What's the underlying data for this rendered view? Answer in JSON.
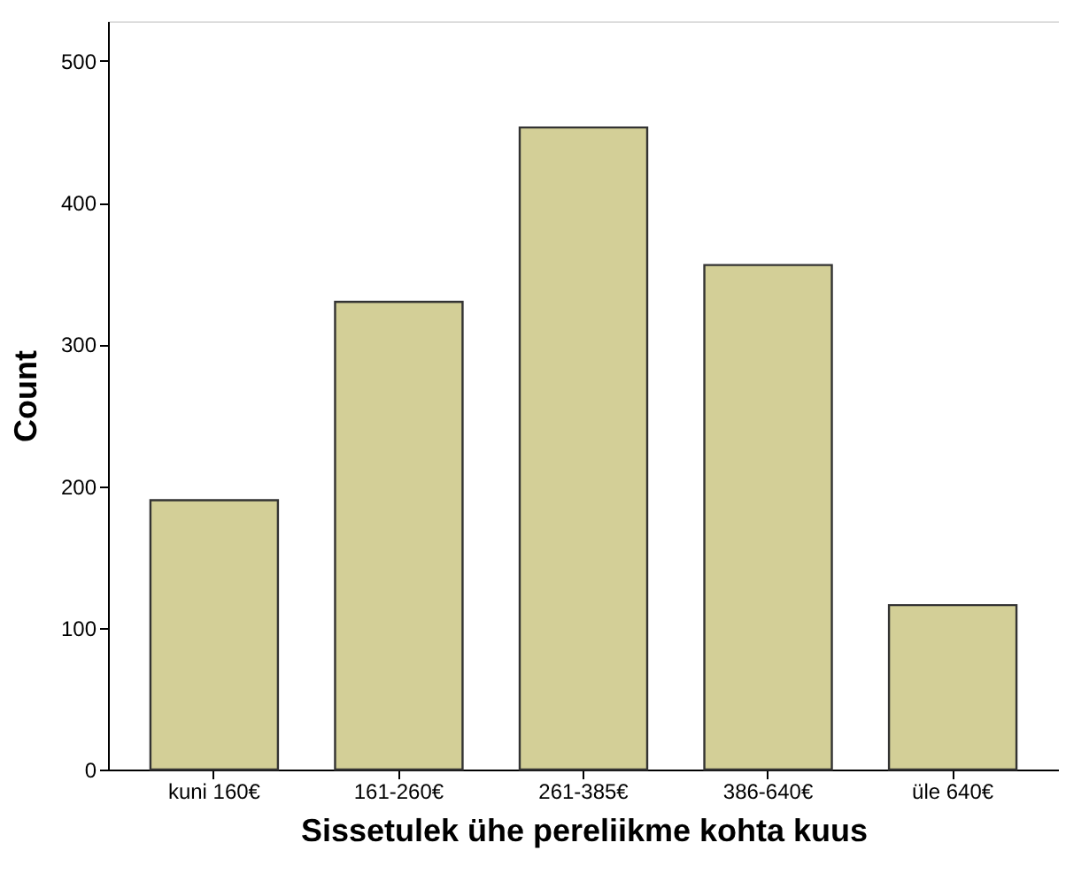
{
  "chart_data": {
    "type": "bar",
    "xlabel": "Sissetulek ühe pereliikme kohta kuus",
    "ylabel": "Count",
    "categories": [
      "kuni 160€",
      "161-260€",
      "261-385€",
      "386-640€",
      "üle 640€"
    ],
    "values": [
      190,
      330,
      453,
      356,
      116
    ],
    "color": "#d3cf97",
    "ylim": [
      0,
      528
    ],
    "yticks": [
      0,
      100,
      200,
      300,
      400,
      500
    ],
    "grid": false
  }
}
